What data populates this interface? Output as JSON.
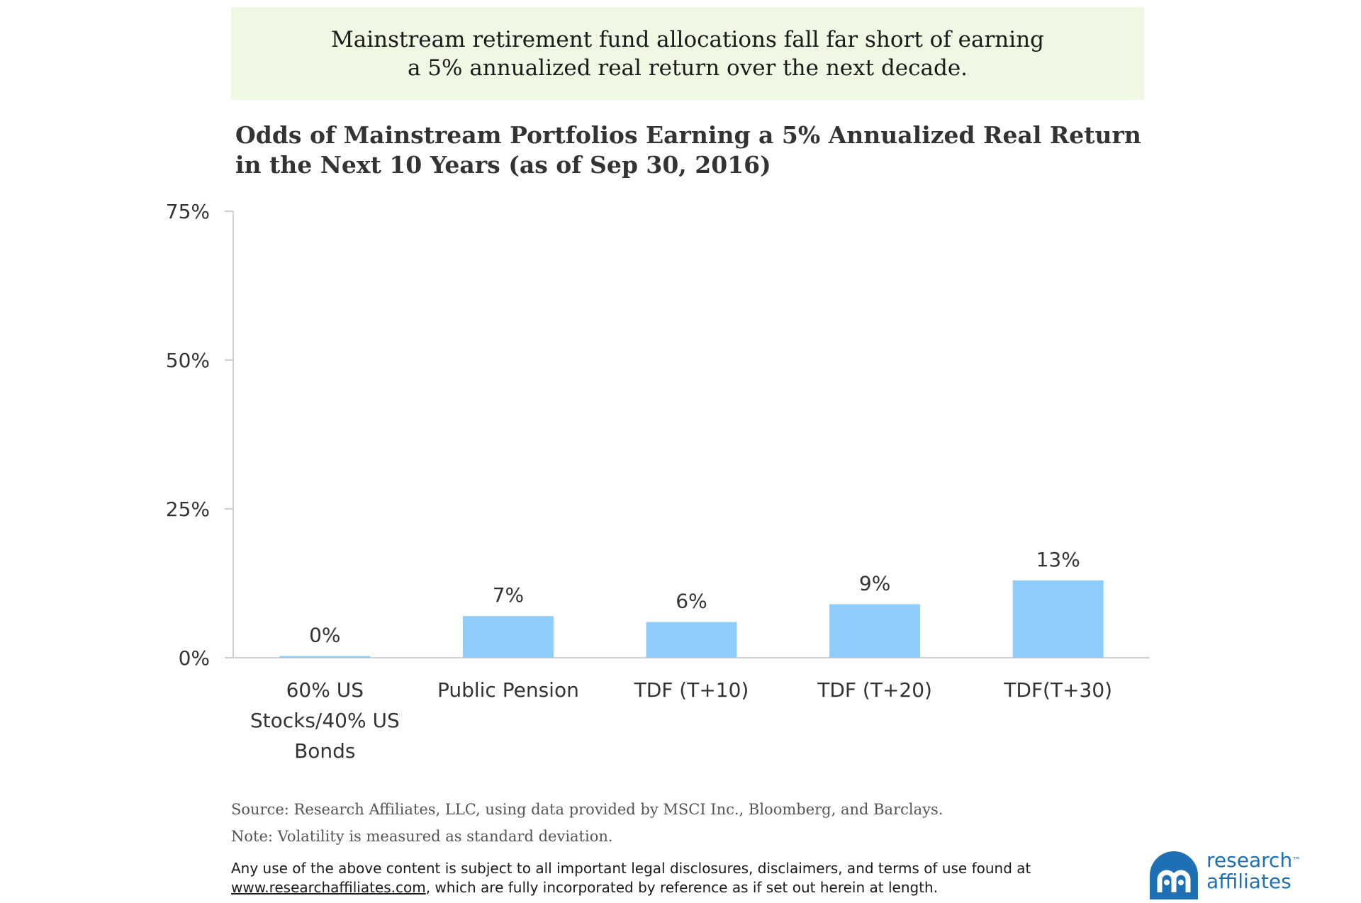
{
  "banner": {
    "line1": "Mainstream retirement fund allocations fall far short of earning",
    "line2": "a 5% annualized real return over the next decade."
  },
  "chart_data": {
    "type": "bar",
    "title_line1": "Odds of Mainstream Portfolios Earning a 5% Annualized Real Return",
    "title_line2": "in the Next 10 Years (as of Sep 30, 2016)",
    "categories": [
      [
        "60% US",
        "Stocks/40% US",
        "Bonds"
      ],
      [
        "Public Pension"
      ],
      [
        "TDF (T+10)"
      ],
      [
        "TDF (T+20)"
      ],
      [
        "TDF(T+30)"
      ]
    ],
    "values": [
      0.3,
      7,
      6,
      9,
      13
    ],
    "data_labels": [
      "0%",
      "7%",
      "6%",
      "9%",
      "13%"
    ],
    "yticks": [
      0,
      25,
      50,
      75
    ],
    "ytick_labels": [
      "0%",
      "25%",
      "50%",
      "75%"
    ],
    "ylim": [
      0,
      75
    ],
    "bar_color": "#8ecdfc",
    "grid": false,
    "legend": "none"
  },
  "footer": {
    "source": "Source: Research Affiliates, LLC, using data provided by MSCI Inc., Bloomberg, and Barclays.",
    "note": "Note: Volatility is measured as standard deviation.",
    "disclaimer_line1": "Any use of the above content is subject to all important legal disclosures, disclaimers, and terms of use found at",
    "link": "www.researchaffiliates.com",
    "disclaimer_line2_rest": ", which are fully incorporated by reference as if set out herein at length."
  },
  "logo": {
    "line1": "research",
    "line2": "affiliates",
    "trademark": "™",
    "color": "#1f6fb5"
  }
}
